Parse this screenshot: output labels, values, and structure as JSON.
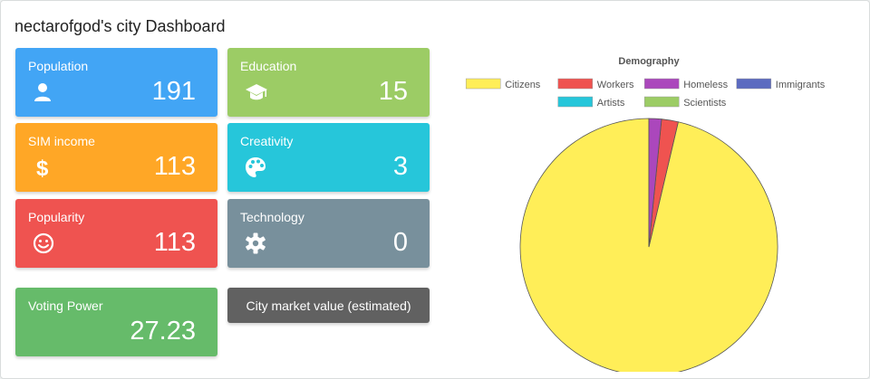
{
  "dashboard": {
    "title": "nectarofgod's city Dashboard"
  },
  "cards": {
    "population": {
      "label": "Population",
      "value": "191",
      "icon": "user-icon",
      "color": "#42a5f5"
    },
    "education": {
      "label": "Education",
      "value": "15",
      "icon": "graduation-cap-icon",
      "color": "#9ccc65"
    },
    "sim_income": {
      "label": "SIM income",
      "value": "113",
      "icon": "dollar-icon",
      "color": "#ffa726"
    },
    "creativity": {
      "label": "Creativity",
      "value": "3",
      "icon": "palette-icon",
      "color": "#26c6da"
    },
    "popularity": {
      "label": "Popularity",
      "value": "113",
      "icon": "smile-icon",
      "color": "#ef5350"
    },
    "technology": {
      "label": "Technology",
      "value": "0",
      "icon": "gear-icon",
      "color": "#78909c"
    },
    "voting_power": {
      "label": "Voting Power",
      "value": "27.23",
      "color": "#66bb6a"
    }
  },
  "market_button": {
    "label": "City market value (estimated)"
  },
  "chart_data": {
    "type": "pie",
    "title": "Demography",
    "legend_position": "top",
    "categories": [
      "Citizens",
      "Workers",
      "Homeless",
      "Immigrants",
      "Artists",
      "Scientists"
    ],
    "values": [
      184,
      4,
      3,
      0,
      0,
      0
    ],
    "colors": [
      "#ffee58",
      "#ef5350",
      "#ab47bc",
      "#5c6bc0",
      "#26c6da",
      "#9ccc65"
    ]
  }
}
